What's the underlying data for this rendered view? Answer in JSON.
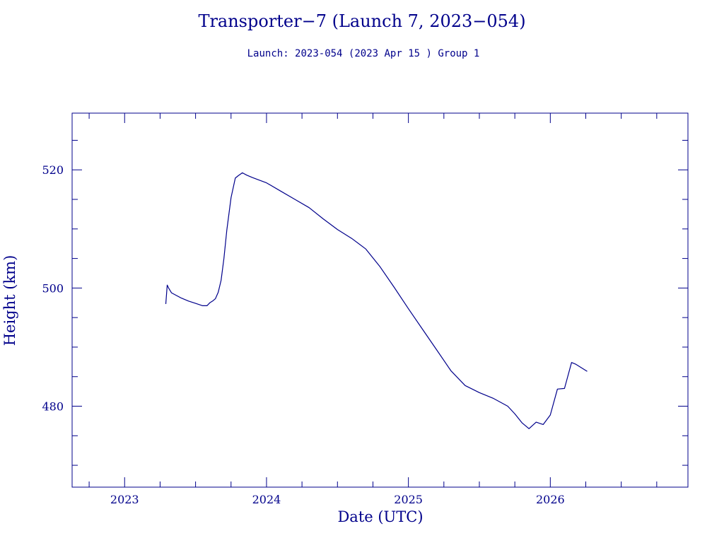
{
  "chart_data": {
    "type": "line",
    "title": "Transporter−7 (Launch 7, 2023−054)",
    "subtitle": "Launch: 2023-054  (2023 Apr 15 )  Group 1",
    "xlabel": "Date (UTC)",
    "ylabel": "Height (km)",
    "xlim": [
      2022.63,
      2026.97
    ],
    "ylim": [
      466.3,
      529.6
    ],
    "x_ticks": [
      "2023",
      "2024",
      "2025",
      "2026"
    ],
    "y_ticks": [
      "480",
      "500",
      "520"
    ],
    "grid": false,
    "color": "#00008b",
    "series": [
      {
        "x": [
          2023.29,
          2023.3,
          2023.31,
          2023.33,
          2023.36,
          2023.4,
          2023.45,
          2023.5,
          2023.55,
          2023.58,
          2023.6,
          2023.62,
          2023.64,
          2023.66,
          2023.68,
          2023.7,
          2023.72,
          2023.75,
          2023.78,
          2023.8,
          2023.83,
          2023.86,
          2023.9,
          2024.0,
          2024.1,
          2024.2,
          2024.3,
          2024.4,
          2024.5,
          2024.6,
          2024.7,
          2024.8,
          2024.9,
          2025.0,
          2025.1,
          2025.2,
          2025.3,
          2025.4,
          2025.5,
          2025.6,
          2025.7,
          2025.75,
          2025.8,
          2025.85,
          2025.9,
          2025.95,
          2026.0,
          2026.05,
          2026.1,
          2026.15,
          2026.18,
          2026.22,
          2026.26
        ],
        "y": [
          497.3,
          500.5,
          500.0,
          499.2,
          498.8,
          498.3,
          497.8,
          497.4,
          497.0,
          497.0,
          497.5,
          497.8,
          498.2,
          499.3,
          501.3,
          505.0,
          509.8,
          515.3,
          518.6,
          519.0,
          519.5,
          519.1,
          518.7,
          517.8,
          516.4,
          515.0,
          513.6,
          511.7,
          509.9,
          508.4,
          506.6,
          503.6,
          500.1,
          496.5,
          493.0,
          489.5,
          486.0,
          483.5,
          482.3,
          481.3,
          480.0,
          478.7,
          477.2,
          476.2,
          477.3,
          476.9,
          478.5,
          482.9,
          483.0,
          487.4,
          487.1,
          486.5,
          485.9
        ]
      }
    ]
  }
}
